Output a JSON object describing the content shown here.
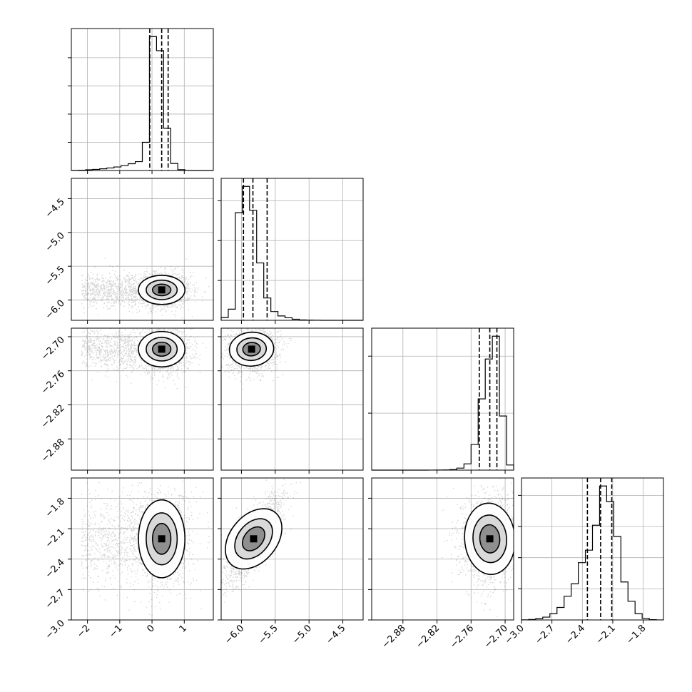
{
  "chart_data": {
    "type": "scatter",
    "title": "",
    "grid": true,
    "params": [
      {
        "range": [
          -2.5,
          1.9
        ],
        "ticks": [
          -2,
          -1,
          0,
          1
        ],
        "tick_labels": [
          "−2",
          "−1",
          "0",
          "1"
        ],
        "median": 0.3,
        "quantiles": [
          -0.07,
          0.3,
          0.5
        ],
        "hist_edges": [
          -2.5,
          -2.28,
          -2.06,
          -1.84,
          -1.62,
          -1.4,
          -1.18,
          -0.96,
          -0.74,
          -0.52,
          -0.3,
          -0.08,
          0.14,
          0.36,
          0.58,
          0.8,
          1.02,
          1.24,
          1.46,
          1.68,
          1.9
        ],
        "hist_counts": [
          1,
          2,
          5,
          8,
          12,
          18,
          25,
          35,
          48,
          63,
          200,
          950,
          850,
          300,
          50,
          6,
          1,
          0,
          0,
          0
        ],
        "hist_ticks": [
          200,
          400,
          600,
          800
        ]
      },
      {
        "range": [
          -6.3,
          -4.2
        ],
        "ticks": [
          -6.0,
          -5.5,
          -5.0,
          -4.5
        ],
        "tick_labels": [
          "−6.0",
          "−5.5",
          "−5.0",
          "−4.5"
        ],
        "median": -5.83,
        "quantiles": [
          -5.97,
          -5.83,
          -5.62
        ],
        "hist_edges": [
          -6.3,
          -6.195,
          -6.09,
          -5.985,
          -5.88,
          -5.775,
          -5.67,
          -5.565,
          -5.46,
          -5.355,
          -5.25,
          -5.145,
          -5.04,
          -4.935,
          -4.83,
          -4.725,
          -4.62,
          -4.515,
          -4.41,
          -4.305,
          -4.2
        ],
        "hist_counts": [
          35,
          140,
          1350,
          1680,
          1380,
          720,
          280,
          110,
          55,
          32,
          14,
          5,
          2,
          1,
          0,
          0,
          0,
          0,
          0,
          0
        ],
        "hist_ticks": [
          500,
          1000,
          1500
        ]
      },
      {
        "range": [
          -2.935,
          -2.685
        ],
        "ticks": [
          -2.88,
          -2.82,
          -2.76,
          -2.7
        ],
        "tick_labels": [
          "−2.88",
          "−2.82",
          "−2.76",
          "−2.70"
        ],
        "median": -2.727,
        "quantiles": [
          -2.7455,
          -2.727,
          -2.7145
        ],
        "hist_edges": [
          -2.935,
          -2.9225,
          -2.91,
          -2.8975,
          -2.885,
          -2.8725,
          -2.86,
          -2.8475,
          -2.835,
          -2.8225,
          -2.81,
          -2.7975,
          -2.785,
          -2.7725,
          -2.76,
          -2.7475,
          -2.735,
          -2.7225,
          -2.71,
          -2.6975,
          -2.685
        ],
        "hist_counts": [
          0,
          0,
          0,
          0,
          0,
          0,
          0,
          0,
          1,
          2,
          3,
          10,
          35,
          110,
          450,
          1250,
          1950,
          2350,
          950,
          90
        ],
        "hist_ticks": [
          1000,
          2000
        ]
      },
      {
        "range": [
          -3.0,
          -1.6
        ],
        "ticks": [
          -3.0,
          -2.7,
          -2.4,
          -2.1,
          -1.8
        ],
        "tick_labels": [
          "−3.0",
          "−2.7",
          "−2.4",
          "−2.1",
          "−1.8"
        ],
        "median": -2.22,
        "quantiles": [
          -2.35,
          -2.22,
          -2.11
        ],
        "hist_edges": [
          -3.0,
          -2.93,
          -2.86,
          -2.79,
          -2.72,
          -2.65,
          -2.58,
          -2.51,
          -2.44,
          -2.37,
          -2.3,
          -2.23,
          -2.16,
          -2.09,
          -2.02,
          -1.95,
          -1.88,
          -1.81,
          -1.74,
          -1.67,
          -1.6
        ],
        "hist_counts": [
          2,
          8,
          20,
          45,
          100,
          200,
          380,
          580,
          920,
          1120,
          1520,
          2150,
          1900,
          1340,
          610,
          300,
          100,
          25,
          5,
          1
        ],
        "hist_ticks": [
          500,
          1000,
          1500,
          2000
        ]
      }
    ],
    "density": [
      {
        "x": 0,
        "y": 1,
        "center": [
          0.3,
          -5.85
        ],
        "spread": [
          0.3,
          0.09
        ],
        "tail_x": [
          -2.2,
          -0.5
        ],
        "rho": 0.0
      },
      {
        "x": 0,
        "y": 2,
        "center": [
          0.3,
          -2.722
        ],
        "spread": [
          0.3,
          0.013
        ],
        "tail_x": [
          -2.2,
          -0.5
        ],
        "rho": 0.0
      },
      {
        "x": 1,
        "y": 2,
        "center": [
          -5.85,
          -2.722
        ],
        "spread": [
          0.13,
          0.013
        ],
        "tail_x": null,
        "rho": 0.1
      },
      {
        "x": 0,
        "y": 3,
        "center": [
          0.3,
          -2.2
        ],
        "spread": [
          0.3,
          0.16
        ],
        "tail_x": [
          -2.2,
          -0.5
        ],
        "rho": 0.0
      },
      {
        "x": 1,
        "y": 3,
        "center": [
          -5.82,
          -2.2
        ],
        "spread": [
          0.15,
          0.15
        ],
        "tail_x": null,
        "rho": 0.8
      },
      {
        "x": 2,
        "y": 3,
        "center": [
          -2.727,
          -2.2
        ],
        "spread": [
          0.018,
          0.15
        ],
        "tail_x": null,
        "rho": 0.05
      }
    ]
  }
}
